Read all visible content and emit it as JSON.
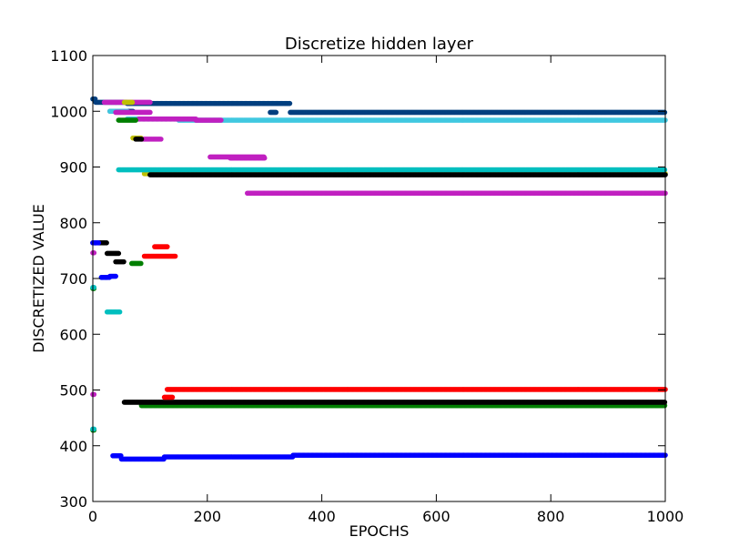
{
  "chart_data": {
    "type": "scatter",
    "title": "Discretize hidden layer",
    "xlabel": "EPOCHS",
    "ylabel": "DISCRETIZED VALUE",
    "xlim": [
      0,
      1000
    ],
    "ylim": [
      300,
      1100
    ],
    "xticks": [
      "0",
      "200",
      "400",
      "600",
      "800",
      "1000"
    ],
    "yticks": [
      "300",
      "400",
      "500",
      "600",
      "700",
      "800",
      "900",
      "1000",
      "1100"
    ],
    "grid": false,
    "legend": "none",
    "series": [
      {
        "color": "#003f7f",
        "segments": [
          [
            0,
            5,
            1022
          ],
          [
            5,
            60,
            1016
          ],
          [
            60,
            345,
            1014
          ],
          [
            30,
            70,
            1000
          ],
          [
            310,
            320,
            998
          ],
          [
            345,
            1000,
            998
          ]
        ]
      },
      {
        "color": "#40c8e0",
        "segments": [
          [
            30,
            60,
            1000
          ],
          [
            60,
            150,
            986
          ],
          [
            150,
            1000,
            984
          ]
        ]
      },
      {
        "color": "#c020c0",
        "segments": [
          [
            20,
            100,
            1016
          ],
          [
            40,
            100,
            998
          ],
          [
            80,
            180,
            986
          ],
          [
            180,
            225,
            984
          ],
          [
            85,
            120,
            950
          ],
          [
            205,
            300,
            918
          ],
          [
            240,
            300,
            916
          ],
          [
            270,
            1000,
            853
          ],
          [
            0,
            3,
            746
          ],
          [
            0,
            3,
            492
          ]
        ]
      },
      {
        "color": "#007f00",
        "segments": [
          [
            45,
            75,
            984
          ],
          [
            85,
            1000,
            472
          ],
          [
            0,
            3,
            428
          ],
          [
            0,
            3,
            682
          ],
          [
            68,
            85,
            727
          ]
        ]
      },
      {
        "color": "#bfbf00",
        "segments": [
          [
            55,
            70,
            1016
          ],
          [
            70,
            85,
            952
          ],
          [
            90,
            1000,
            888
          ]
        ]
      },
      {
        "color": "#00bfbf",
        "segments": [
          [
            45,
            1000,
            895
          ],
          [
            15,
            25,
            702
          ],
          [
            25,
            48,
            640
          ],
          [
            0,
            3,
            430
          ],
          [
            0,
            3,
            684
          ]
        ]
      },
      {
        "color": "#000000",
        "segments": [
          [
            0,
            25,
            764
          ],
          [
            25,
            45,
            745
          ],
          [
            40,
            55,
            730
          ],
          [
            55,
            1000,
            478
          ],
          [
            100,
            1000,
            886
          ],
          [
            75,
            85,
            950
          ]
        ]
      },
      {
        "color": "#ff0000",
        "segments": [
          [
            90,
            145,
            740
          ],
          [
            108,
            130,
            757
          ],
          [
            125,
            140,
            487
          ],
          [
            130,
            1000,
            501
          ]
        ]
      },
      {
        "color": "#0000ff",
        "segments": [
          [
            0,
            10,
            764
          ],
          [
            15,
            30,
            702
          ],
          [
            30,
            40,
            704
          ],
          [
            35,
            50,
            382
          ],
          [
            50,
            125,
            376
          ],
          [
            125,
            350,
            380
          ],
          [
            350,
            1000,
            383
          ]
        ]
      }
    ]
  }
}
